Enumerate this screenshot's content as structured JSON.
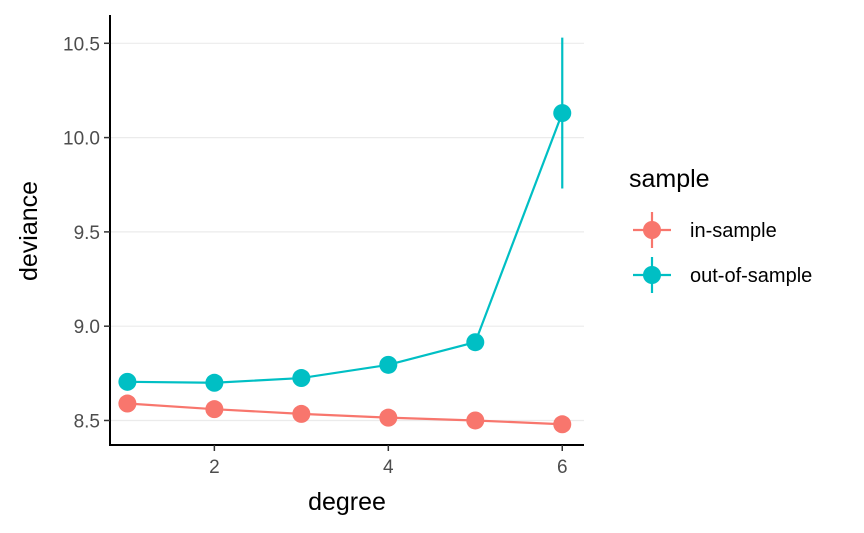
{
  "chart_data": {
    "type": "line",
    "xlabel": "degree",
    "ylabel": "deviance",
    "xlim": [
      0.8,
      6.25
    ],
    "ylim": [
      8.37,
      10.65
    ],
    "x_ticks": [
      2,
      4,
      6
    ],
    "y_ticks": [
      8.5,
      9.0,
      9.5,
      10.0,
      10.5
    ],
    "x_tick_labels": [
      "2",
      "4",
      "6"
    ],
    "y_tick_labels": [
      "8.5",
      "9.0",
      "9.5",
      "10.0",
      "10.5"
    ],
    "grid": "horizontal major",
    "legend": {
      "title": "sample",
      "position": "right"
    },
    "x": [
      1,
      2,
      3,
      4,
      5,
      6
    ],
    "series": [
      {
        "name": "in-sample",
        "color": "#F8766D",
        "values": [
          8.59,
          8.56,
          8.535,
          8.515,
          8.5,
          8.48
        ],
        "error_low": [
          8.59,
          8.56,
          8.535,
          8.515,
          8.5,
          8.48
        ],
        "error_high": [
          8.59,
          8.56,
          8.535,
          8.515,
          8.5,
          8.48
        ]
      },
      {
        "name": "out-of-sample",
        "color": "#00BFC4",
        "values": [
          8.705,
          8.7,
          8.725,
          8.795,
          8.915,
          10.13
        ],
        "error_low": [
          8.705,
          8.7,
          8.725,
          8.795,
          8.915,
          9.73
        ],
        "error_high": [
          8.705,
          8.7,
          8.725,
          8.795,
          8.915,
          10.53
        ]
      }
    ]
  }
}
